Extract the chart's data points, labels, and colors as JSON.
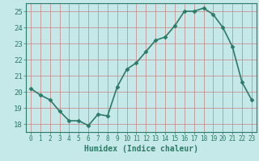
{
  "x": [
    0,
    1,
    2,
    3,
    4,
    5,
    6,
    7,
    8,
    9,
    10,
    11,
    12,
    13,
    14,
    15,
    16,
    17,
    18,
    19,
    20,
    21,
    22,
    23
  ],
  "y": [
    20.2,
    19.8,
    19.5,
    18.8,
    18.2,
    18.2,
    17.9,
    18.6,
    18.5,
    20.3,
    21.4,
    21.8,
    22.5,
    23.2,
    23.4,
    24.1,
    25.0,
    25.0,
    25.2,
    24.8,
    24.0,
    22.8,
    20.6,
    19.5
  ],
  "line_color": "#2d7a68",
  "marker_color": "#2d7a68",
  "bg_color": "#c5e8e8",
  "grid_color": "#d08080",
  "xlabel": "Humidex (Indice chaleur)",
  "xlim": [
    -0.5,
    23.5
  ],
  "ylim": [
    17.5,
    25.5
  ],
  "yticks": [
    18,
    19,
    20,
    21,
    22,
    23,
    24,
    25
  ],
  "xticks": [
    0,
    1,
    2,
    3,
    4,
    5,
    6,
    7,
    8,
    9,
    10,
    11,
    12,
    13,
    14,
    15,
    16,
    17,
    18,
    19,
    20,
    21,
    22,
    23
  ],
  "font_color": "#2d7a68",
  "xlabel_fontsize": 7,
  "tick_fontsize": 5.5,
  "ytick_fontsize": 6.5,
  "linewidth": 1.2,
  "markersize": 2.5
}
